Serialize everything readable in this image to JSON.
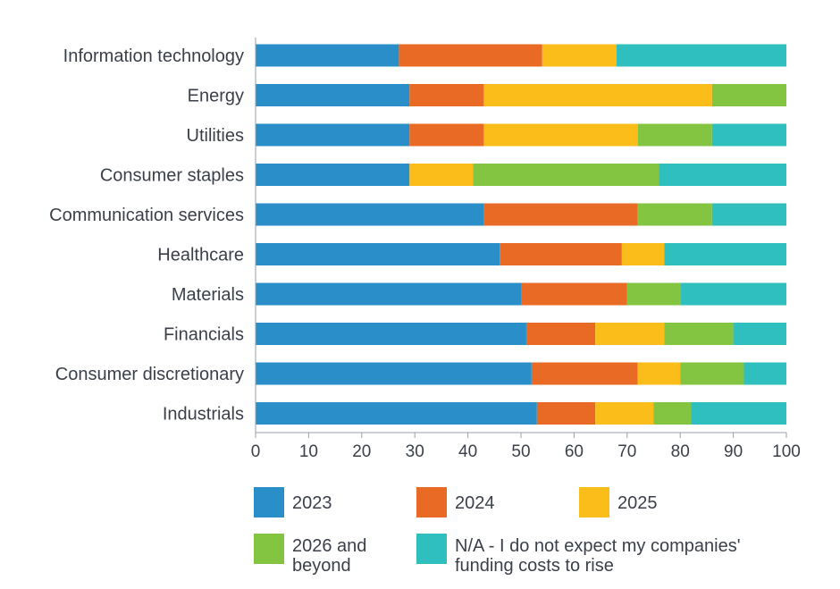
{
  "chart_data": {
    "type": "bar",
    "orientation": "horizontal",
    "stacked": true,
    "title": "",
    "xlabel": "",
    "ylabel": "",
    "xlim": [
      0,
      100
    ],
    "x_ticks": [
      "0",
      "10",
      "20",
      "30",
      "40",
      "50",
      "60",
      "70",
      "80",
      "90",
      "100"
    ],
    "grid": false,
    "legend_position": "bottom",
    "categories": [
      "Information technology",
      "Energy",
      "Utilities",
      "Consumer staples",
      "Communication services",
      "Healthcare",
      "Materials",
      "Financials",
      "Consumer discretionary",
      "Industrials"
    ],
    "series": [
      {
        "name": "2023",
        "color": "#2a8fc8",
        "values": [
          27,
          29,
          29,
          29,
          43,
          46,
          50,
          51,
          52,
          53
        ]
      },
      {
        "name": "2024",
        "color": "#e86a24",
        "values": [
          27,
          14,
          14,
          0,
          29,
          23,
          20,
          13,
          20,
          11
        ]
      },
      {
        "name": "2025",
        "color": "#fbbd19",
        "values": [
          14,
          43,
          29,
          12,
          0,
          8,
          0,
          13,
          8,
          11
        ]
      },
      {
        "name": "2026 and beyond",
        "color": "#83c441",
        "values": [
          0,
          14,
          14,
          35,
          14,
          0,
          10,
          13,
          12,
          7
        ]
      },
      {
        "name": "N/A - I do not expect my companies' funding costs to rise",
        "color": "#2fbfbf",
        "values": [
          32,
          0,
          14,
          24,
          14,
          23,
          20,
          10,
          8,
          18
        ]
      }
    ]
  },
  "legend": {
    "items": [
      {
        "lines": [
          "2023"
        ],
        "color": "#2a8fc8"
      },
      {
        "lines": [
          "2024"
        ],
        "color": "#e86a24"
      },
      {
        "lines": [
          "2025"
        ],
        "color": "#fbbd19"
      },
      {
        "lines": [
          "2026 and",
          "beyond"
        ],
        "color": "#83c441"
      },
      {
        "lines": [
          "N/A - I do not expect my companies'",
          "funding costs to rise"
        ],
        "color": "#2fbfbf"
      }
    ]
  }
}
